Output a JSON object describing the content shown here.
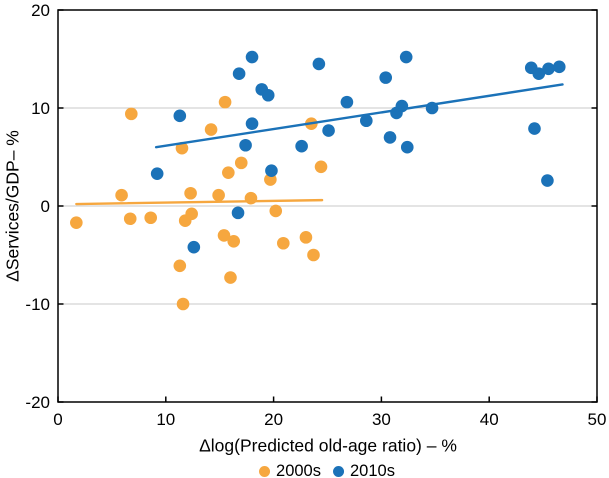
{
  "chart_data": {
    "type": "scatter",
    "title": "",
    "xlabel": "Δlog(Predicted old-age ratio) – %",
    "ylabel": "ΔServices/GDP– %",
    "xlim": [
      0,
      50
    ],
    "ylim": [
      -20,
      20
    ],
    "xticks": [
      0,
      10,
      20,
      30,
      40,
      50
    ],
    "yticks": [
      -20,
      -10,
      0,
      10,
      20
    ],
    "gridlines_y": [
      -10,
      0,
      10
    ],
    "grid": true,
    "legend_position": "bottom-center",
    "series": [
      {
        "name": "2000s",
        "color": "#F6A73F",
        "points": [
          [
            1.7,
            -1.7
          ],
          [
            5.9,
            1.1
          ],
          [
            6.7,
            -1.3
          ],
          [
            6.8,
            9.4
          ],
          [
            8.6,
            -1.2
          ],
          [
            11.3,
            -6.1
          ],
          [
            11.5,
            5.9
          ],
          [
            11.6,
            -10.0
          ],
          [
            11.8,
            -1.5
          ],
          [
            12.3,
            1.3
          ],
          [
            12.4,
            -0.8
          ],
          [
            14.2,
            7.8
          ],
          [
            14.9,
            1.1
          ],
          [
            15.4,
            -3.0
          ],
          [
            15.5,
            10.6
          ],
          [
            15.8,
            3.4
          ],
          [
            16.0,
            -7.3
          ],
          [
            16.3,
            -3.6
          ],
          [
            17.0,
            4.4
          ],
          [
            17.9,
            0.8
          ],
          [
            19.7,
            2.7
          ],
          [
            20.2,
            -0.5
          ],
          [
            20.9,
            -3.8
          ],
          [
            23.0,
            -3.2
          ],
          [
            23.5,
            8.4
          ],
          [
            23.7,
            -5.0
          ],
          [
            24.4,
            4.0
          ]
        ],
        "trend": {
          "x1": 1.7,
          "y1": 0.2,
          "x2": 24.5,
          "y2": 0.6
        }
      },
      {
        "name": "2010s",
        "color": "#1B72B8",
        "points": [
          [
            9.2,
            3.3
          ],
          [
            11.3,
            9.2
          ],
          [
            12.6,
            -4.2
          ],
          [
            16.7,
            -0.7
          ],
          [
            16.8,
            13.5
          ],
          [
            17.4,
            6.2
          ],
          [
            18.0,
            8.4
          ],
          [
            18.0,
            15.2
          ],
          [
            18.9,
            11.9
          ],
          [
            19.5,
            11.3
          ],
          [
            19.8,
            3.6
          ],
          [
            22.6,
            6.1
          ],
          [
            24.2,
            14.5
          ],
          [
            25.1,
            7.7
          ],
          [
            26.8,
            10.6
          ],
          [
            28.6,
            8.7
          ],
          [
            30.4,
            13.1
          ],
          [
            30.8,
            7.0
          ],
          [
            31.4,
            9.5
          ],
          [
            31.9,
            10.2
          ],
          [
            32.3,
            15.2
          ],
          [
            32.4,
            6.0
          ],
          [
            34.7,
            10.0
          ],
          [
            43.9,
            14.1
          ],
          [
            44.6,
            13.5
          ],
          [
            45.5,
            14.0
          ],
          [
            46.5,
            14.2
          ],
          [
            44.2,
            7.9
          ],
          [
            45.4,
            2.6
          ]
        ],
        "trend": {
          "x1": 9.1,
          "y1": 6.0,
          "x2": 46.8,
          "y2": 12.4
        }
      }
    ]
  },
  "colors": {
    "orange": "#F6A73F",
    "blue": "#1B72B8",
    "gridline": "#C9C9C9",
    "axis": "#000000",
    "background": "#FFFFFF"
  },
  "legend": {
    "items": [
      {
        "label": "2000s"
      },
      {
        "label": "2010s"
      }
    ]
  }
}
